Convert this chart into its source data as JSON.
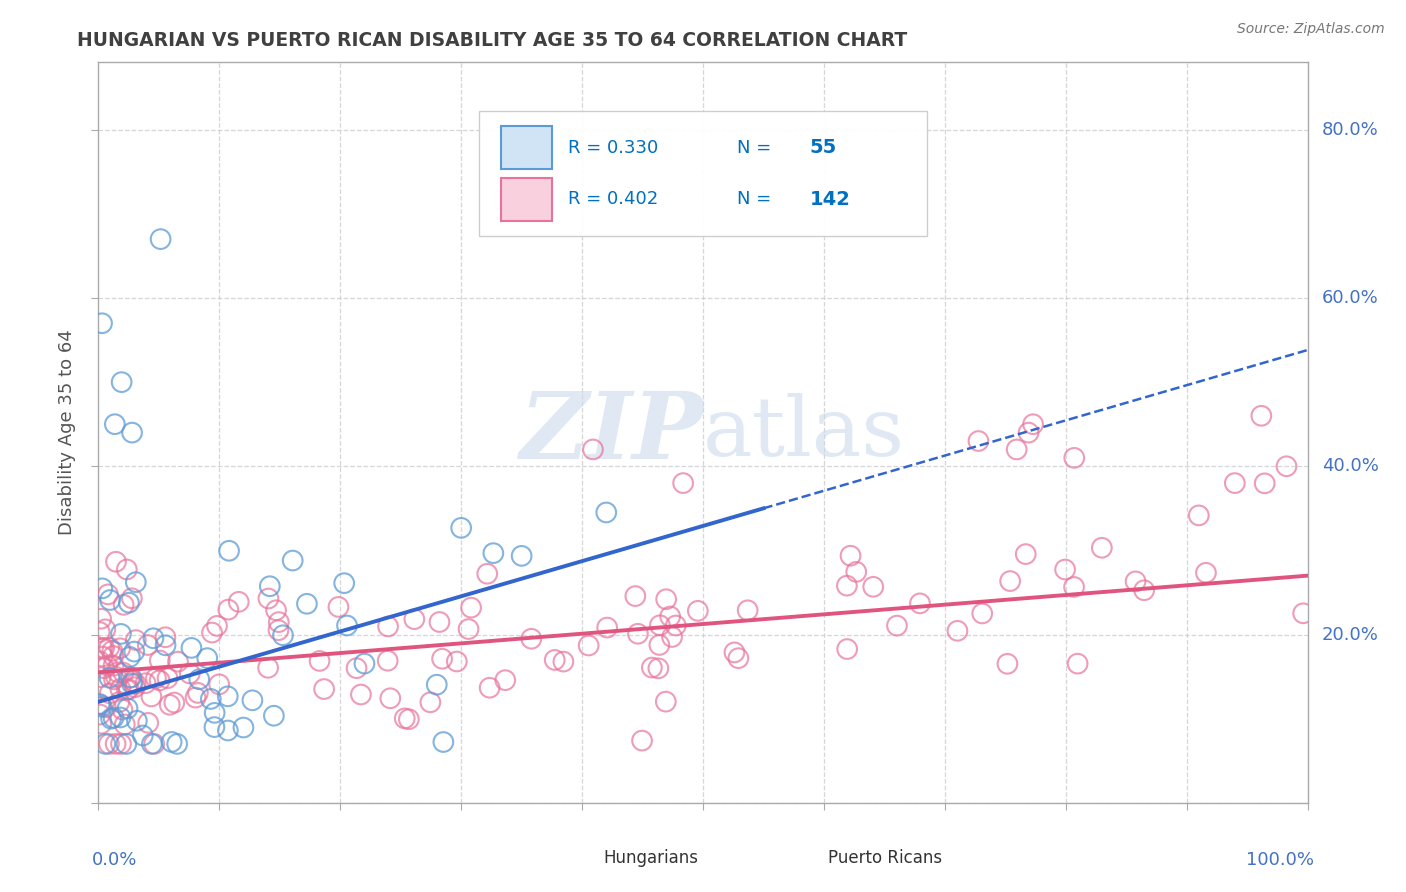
{
  "title": "HUNGARIAN VS PUERTO RICAN DISABILITY AGE 35 TO 64 CORRELATION CHART",
  "source": "Source: ZipAtlas.com",
  "ylabel": "Disability Age 35 to 64",
  "xlim": [
    0,
    1
  ],
  "ylim": [
    0,
    0.88
  ],
  "hungarian_R": 0.33,
  "hungarian_N": 55,
  "puerto_rican_R": 0.402,
  "puerto_rican_N": 142,
  "hungarian_color": "#adc6e8",
  "hungarian_edge_color": "#5b9bd5",
  "puerto_rican_color": "#f4b8cb",
  "puerto_rican_edge_color": "#e8729a",
  "hungarian_line_color": "#3366cc",
  "puerto_rican_line_color": "#e05580",
  "legend_text_color": "#0070c0",
  "label_color": "#4472c4",
  "watermark_color": "#c8d8ea",
  "background_color": "#ffffff",
  "grid_color": "#cccccc",
  "title_color": "#404040",
  "source_color": "#777777"
}
